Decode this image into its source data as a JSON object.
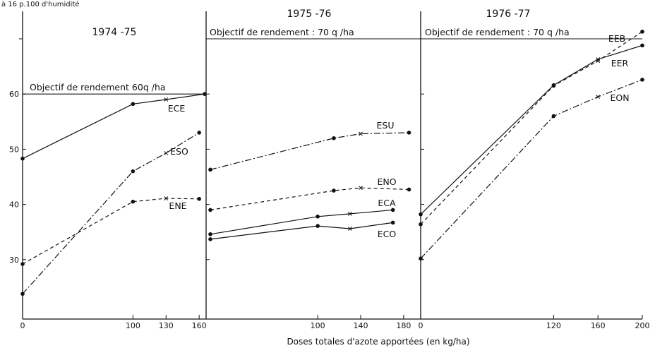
{
  "figure": {
    "top_note": "à 16 p.100 d'humidité",
    "xlabel": "Doses totales  d'azote  apportées (en kg/ha)"
  },
  "chart_data": [
    {
      "type": "line",
      "title": "1974 -75",
      "goal_label": "Objectif de rendement  60q  /ha",
      "goal_value": 60,
      "xlim": [
        0,
        165
      ],
      "ylim": [
        20,
        75
      ],
      "xticks": [
        0,
        100,
        130,
        160
      ],
      "yticks": [
        30,
        40,
        50,
        60
      ],
      "yticks_unlabeled": [
        70
      ],
      "series": [
        {
          "name": "ECE",
          "style": "solid",
          "points": [
            [
              0,
              48.3
            ],
            [
              100,
              58.2
            ],
            [
              130,
              59.0
            ],
            [
              165,
              60.0
            ]
          ],
          "markers": [
            "dot",
            "dot",
            "cross",
            "dot"
          ]
        },
        {
          "name": "ESO",
          "style": "dashdot",
          "points": [
            [
              0,
              23.8
            ],
            [
              100,
              46.0
            ],
            [
              130,
              49.3
            ],
            [
              160,
              53.0
            ]
          ],
          "markers": [
            "dot",
            "dot",
            "cross",
            "dot"
          ]
        },
        {
          "name": "ENE",
          "style": "dashed",
          "points": [
            [
              0,
              29.2
            ],
            [
              100,
              40.5
            ],
            [
              130,
              41.1
            ],
            [
              160,
              41.0
            ]
          ],
          "markers": [
            "dot",
            "dot",
            "cross",
            "dot"
          ]
        }
      ]
    },
    {
      "type": "line",
      "title": "1975 -76",
      "goal_label": "Objectif de rendement :  70 q  /ha",
      "goal_value": 70,
      "xlim": [
        0,
        186
      ],
      "ylim": [
        20,
        75
      ],
      "xticks": [
        100,
        140,
        180
      ],
      "xtick_labels": [
        "100",
        "140",
        "180"
      ],
      "yticks_unlabeled": [
        30,
        40,
        50,
        60,
        70
      ],
      "series": [
        {
          "name": "ESU",
          "style": "dashdot",
          "points": [
            [
              0,
              46.3
            ],
            [
              115,
              52.0
            ],
            [
              140,
              52.8
            ],
            [
              185,
              53.0
            ]
          ],
          "markers": [
            "dot",
            "dot",
            "cross",
            "dot"
          ]
        },
        {
          "name": "ENO",
          "style": "dashed",
          "points": [
            [
              0,
              39.0
            ],
            [
              115,
              42.5
            ],
            [
              140,
              43.0
            ],
            [
              185,
              42.7
            ]
          ],
          "markers": [
            "dot",
            "dot",
            "cross",
            "dot"
          ]
        },
        {
          "name": "ECA",
          "style": "solid",
          "points": [
            [
              0,
              34.6
            ],
            [
              100,
              37.8
            ],
            [
              130,
              38.3
            ],
            [
              170,
              39.0
            ]
          ],
          "markers": [
            "dot",
            "dot",
            "cross",
            "dot"
          ]
        },
        {
          "name": "ECO",
          "style": "solid",
          "points": [
            [
              0,
              33.7
            ],
            [
              100,
              36.1
            ],
            [
              130,
              35.6
            ],
            [
              170,
              36.7
            ]
          ],
          "markers": [
            "dot",
            "dot",
            "cross",
            "dot"
          ]
        }
      ]
    },
    {
      "type": "line",
      "title": "1976 -77",
      "goal_label": "Objectif de rendement : 70 q  /ha",
      "goal_value": 70,
      "xlim": [
        0,
        200
      ],
      "ylim": [
        20,
        75
      ],
      "xticks": [
        0,
        120,
        160,
        200
      ],
      "yticks_unlabeled": [
        30,
        40,
        50,
        60,
        70
      ],
      "series": [
        {
          "name": "EEB",
          "style": "dashed",
          "points": [
            [
              0,
              36.4
            ],
            [
              120,
              61.5
            ],
            [
              160,
              66.0
            ],
            [
              200,
              71.3
            ]
          ],
          "markers": [
            "dot",
            "dot",
            "cross",
            "dot"
          ]
        },
        {
          "name": "EER",
          "style": "solid",
          "points": [
            [
              0,
              38.2
            ],
            [
              120,
              61.6
            ],
            [
              160,
              66.3
            ],
            [
              200,
              68.8
            ]
          ],
          "markers": [
            "dot",
            "dot",
            "cross",
            "dot"
          ]
        },
        {
          "name": "EON",
          "style": "dashdot",
          "points": [
            [
              0,
              30.2
            ],
            [
              120,
              56.0
            ],
            [
              160,
              59.5
            ],
            [
              200,
              62.6
            ]
          ],
          "markers": [
            "dot",
            "dot",
            "cross",
            "dot"
          ]
        }
      ]
    }
  ]
}
